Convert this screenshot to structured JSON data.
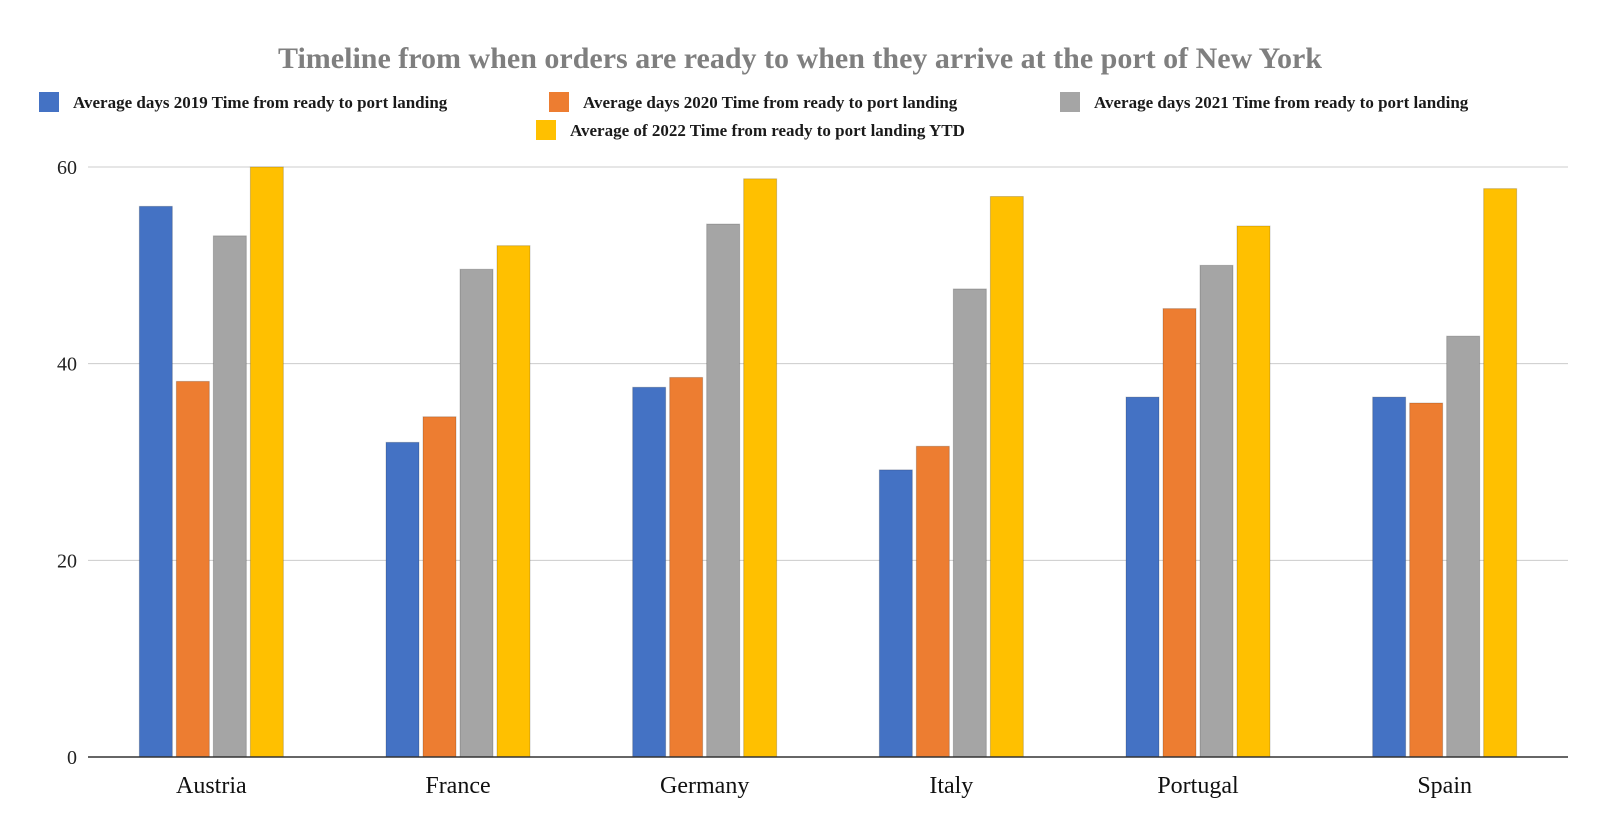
{
  "chart_data": {
    "type": "bar",
    "title": "Timeline from when orders are ready to when they arrive at the port of New York",
    "xlabel": "",
    "ylabel": "",
    "ylim": [
      0,
      60
    ],
    "yticks": [
      0,
      20,
      40,
      60
    ],
    "grid": true,
    "legend_position": "top",
    "categories": [
      "Austria",
      "France",
      "Germany",
      "Italy",
      "Portugal",
      "Spain"
    ],
    "series": [
      {
        "name": "Average days 2019 Time from ready to port landing",
        "color": "#4472c4",
        "values": [
          56,
          32,
          37.6,
          29.2,
          36.6,
          36.6
        ]
      },
      {
        "name": "Average days 2020 Time from ready to port landing",
        "color": "#ed7d31",
        "values": [
          38.2,
          34.6,
          38.6,
          31.6,
          45.6,
          36
        ]
      },
      {
        "name": "Average days 2021 Time from ready to port landing",
        "color": "#a5a5a5",
        "values": [
          53,
          49.6,
          54.2,
          47.6,
          50,
          42.8
        ]
      },
      {
        "name": "Average of 2022 Time from ready to port landing YTD",
        "color": "#ffc000",
        "values": [
          60,
          52,
          58.8,
          57,
          54,
          57.8
        ]
      }
    ]
  }
}
